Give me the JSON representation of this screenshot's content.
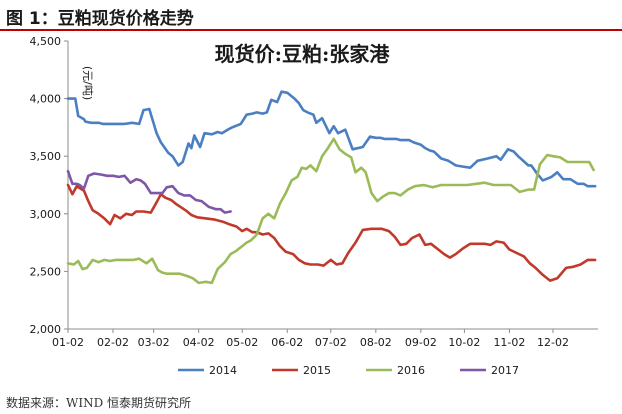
{
  "figure": {
    "title": "图 1：豆粕现货价格走势",
    "source": "数据来源：WIND 恒泰期货研究所"
  },
  "colors": {
    "rule": "#c00000",
    "s2014": "#4a7fc1",
    "s2015": "#c0392b",
    "s2016": "#9bbb59",
    "s2017": "#7e57a6",
    "axis": "#8c8c8c",
    "text": "#1a1a1a"
  },
  "chart_data": {
    "type": "line",
    "title": "现货价:豆粕:张家港",
    "ylabel": "(元/吨)",
    "xlabel": "",
    "ylim": [
      2000,
      4500
    ],
    "yticks": [
      2000,
      2500,
      3000,
      3500,
      4000,
      4500
    ],
    "ytick_labels": [
      "2,000",
      "2,500",
      "3,000",
      "3,500",
      "4,000",
      "4,500"
    ],
    "xlim": [
      1,
      366
    ],
    "xticks": [
      1,
      32,
      60,
      91,
      121,
      152,
      182,
      213,
      244,
      274,
      305,
      335
    ],
    "xtick_labels": [
      "01-02",
      "02-02",
      "03-02",
      "04-02",
      "05-02",
      "06-02",
      "07-02",
      "08-02",
      "09-02",
      "10-02",
      "11-02",
      "12-02"
    ],
    "grid": false,
    "legend": "bottom",
    "series": [
      {
        "name": "2014",
        "color": "#4a7fc1",
        "x": [
          1,
          6,
          8,
          12,
          13,
          17,
          22,
          25,
          30,
          35,
          40,
          45,
          50,
          53,
          57,
          62,
          65,
          70,
          73,
          77,
          80,
          84,
          86,
          88,
          92,
          95,
          100,
          104,
          107,
          111,
          114,
          120,
          124,
          128,
          131,
          135,
          138,
          141,
          145,
          148,
          152,
          157,
          160,
          163,
          166,
          170,
          172,
          176,
          181,
          184,
          187,
          192,
          197,
          204,
          209,
          213,
          216,
          219,
          223,
          227,
          230,
          236,
          239,
          244,
          247,
          250,
          253,
          258,
          263,
          268,
          273,
          278,
          283,
          290,
          296,
          299,
          304,
          308,
          311,
          318,
          320,
          324,
          328,
          334,
          338,
          342,
          347,
          352,
          356,
          359,
          364
        ],
        "values": [
          4000,
          4000,
          3850,
          3820,
          3800,
          3790,
          3790,
          3780,
          3780,
          3780,
          3780,
          3790,
          3780,
          3900,
          3910,
          3700,
          3620,
          3530,
          3500,
          3420,
          3450,
          3610,
          3570,
          3680,
          3580,
          3700,
          3690,
          3710,
          3700,
          3730,
          3750,
          3780,
          3860,
          3870,
          3880,
          3870,
          3880,
          3990,
          3970,
          4060,
          4050,
          4000,
          3960,
          3900,
          3880,
          3860,
          3790,
          3830,
          3700,
          3760,
          3700,
          3730,
          3560,
          3580,
          3670,
          3660,
          3660,
          3650,
          3650,
          3650,
          3640,
          3640,
          3620,
          3600,
          3570,
          3550,
          3540,
          3480,
          3460,
          3420,
          3410,
          3400,
          3460,
          3480,
          3500,
          3470,
          3560,
          3540,
          3500,
          3420,
          3420,
          3350,
          3290,
          3320,
          3360,
          3300,
          3300,
          3260,
          3260,
          3240,
          3240
        ]
      },
      {
        "name": "2015",
        "color": "#c0392b",
        "x": [
          1,
          4,
          7,
          12,
          15,
          18,
          22,
          26,
          30,
          33,
          37,
          41,
          45,
          48,
          53,
          58,
          62,
          65,
          68,
          72,
          76,
          82,
          86,
          90,
          96,
          102,
          108,
          112,
          117,
          121,
          124,
          128,
          131,
          135,
          139,
          143,
          147,
          151,
          156,
          160,
          164,
          168,
          173,
          177,
          182,
          186,
          190,
          194,
          199,
          204,
          210,
          213,
          217,
          222,
          226,
          230,
          234,
          238,
          243,
          247,
          251,
          256,
          260,
          264,
          268,
          273,
          278,
          284,
          288,
          292,
          296,
          301,
          305,
          310,
          315,
          319,
          323,
          328,
          333,
          338,
          344,
          349,
          354,
          359,
          364
        ],
        "values": [
          3250,
          3170,
          3240,
          3200,
          3110,
          3030,
          3000,
          2960,
          2910,
          2990,
          2960,
          3000,
          2990,
          3020,
          3020,
          3010,
          3100,
          3170,
          3140,
          3120,
          3080,
          3030,
          2990,
          2970,
          2960,
          2950,
          2930,
          2910,
          2890,
          2850,
          2870,
          2840,
          2840,
          2820,
          2830,
          2790,
          2720,
          2670,
          2650,
          2600,
          2570,
          2560,
          2560,
          2550,
          2600,
          2560,
          2570,
          2660,
          2750,
          2860,
          2870,
          2870,
          2870,
          2850,
          2800,
          2730,
          2740,
          2790,
          2820,
          2730,
          2740,
          2690,
          2650,
          2620,
          2650,
          2700,
          2740,
          2740,
          2740,
          2730,
          2760,
          2750,
          2690,
          2660,
          2630,
          2570,
          2530,
          2470,
          2420,
          2440,
          2530,
          2540,
          2560,
          2600,
          2600
        ]
      },
      {
        "name": "2016",
        "color": "#9bbb59",
        "x": [
          1,
          5,
          8,
          11,
          14,
          18,
          22,
          26,
          30,
          34,
          38,
          42,
          46,
          50,
          55,
          59,
          63,
          66,
          69,
          73,
          78,
          83,
          87,
          91,
          96,
          100,
          104,
          109,
          113,
          117,
          121,
          124,
          127,
          131,
          135,
          139,
          143,
          147,
          151,
          155,
          159,
          162,
          165,
          168,
          172,
          176,
          180,
          184,
          188,
          192,
          196,
          199,
          203,
          206,
          210,
          214,
          218,
          222,
          226,
          230,
          235,
          240,
          246,
          252,
          258,
          264,
          270,
          276,
          282,
          288,
          294,
          300,
          306,
          312,
          318,
          322,
          326,
          331,
          335,
          340,
          345,
          350,
          355,
          360,
          363
        ],
        "values": [
          2570,
          2560,
          2590,
          2520,
          2530,
          2600,
          2580,
          2600,
          2590,
          2600,
          2600,
          2600,
          2600,
          2610,
          2570,
          2610,
          2510,
          2490,
          2480,
          2480,
          2480,
          2460,
          2440,
          2400,
          2410,
          2400,
          2520,
          2580,
          2650,
          2680,
          2720,
          2750,
          2770,
          2820,
          2960,
          3000,
          2960,
          3090,
          3180,
          3290,
          3320,
          3400,
          3390,
          3420,
          3370,
          3500,
          3570,
          3650,
          3560,
          3520,
          3490,
          3360,
          3400,
          3360,
          3180,
          3110,
          3150,
          3180,
          3180,
          3160,
          3210,
          3240,
          3250,
          3230,
          3250,
          3250,
          3250,
          3250,
          3260,
          3270,
          3250,
          3250,
          3250,
          3190,
          3210,
          3210,
          3430,
          3510,
          3500,
          3490,
          3450,
          3450,
          3450,
          3450,
          3380
        ]
      },
      {
        "name": "2017",
        "color": "#7e57a6",
        "x": [
          1,
          4,
          7,
          9,
          12,
          15,
          19,
          24,
          28,
          32,
          36,
          40,
          44,
          48,
          51,
          54,
          58,
          62,
          66,
          69,
          73,
          77,
          81,
          85,
          89,
          93,
          98,
          103,
          106,
          109,
          113
        ],
        "values": [
          3370,
          3260,
          3260,
          3250,
          3220,
          3330,
          3350,
          3340,
          3330,
          3330,
          3320,
          3330,
          3270,
          3300,
          3290,
          3260,
          3180,
          3180,
          3180,
          3230,
          3240,
          3180,
          3160,
          3160,
          3120,
          3110,
          3060,
          3040,
          3040,
          3010,
          3020
        ]
      }
    ]
  }
}
